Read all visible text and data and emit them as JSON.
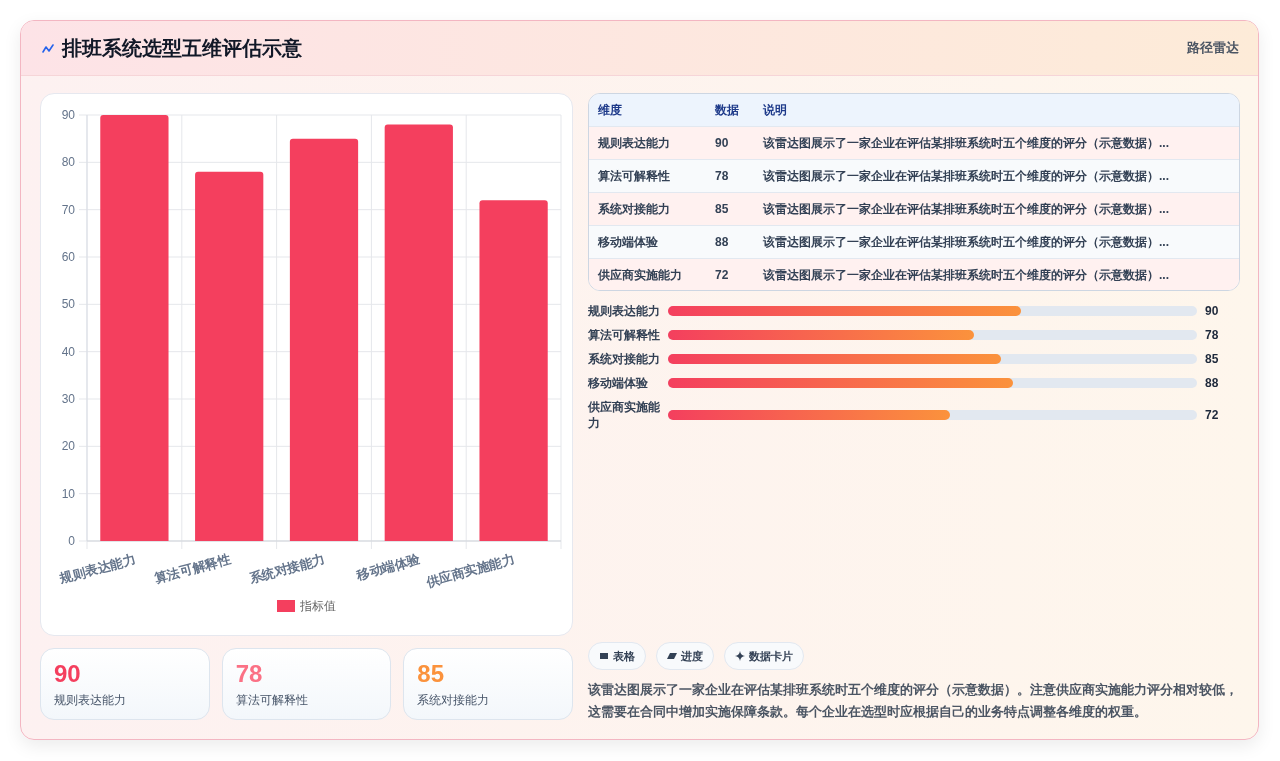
{
  "chart_data": [
    {
      "type": "other",
      "title": "排班系统选型五维评估示意",
      "subtitle": "路径雷达"
    },
    {
      "type": "bar",
      "categories": [
        "规则表达能力",
        "算法可解释性",
        "系统对接能力",
        "移动端体验",
        "供应商实施能力"
      ],
      "series": [
        {
          "name": "指标值",
          "color": "#f43f5e",
          "values": [
            90,
            78,
            85,
            88,
            72
          ]
        }
      ],
      "ylim": [
        0,
        90
      ],
      "yticks": [
        0,
        10,
        20,
        30,
        40,
        50,
        60,
        70,
        80,
        90
      ],
      "grid": true,
      "legend": "bottom"
    },
    {
      "type": "other",
      "categories": [
        "规则表达能力",
        "算法可解释性",
        "系统对接能力",
        "移动端体验",
        "供应商实施能力"
      ],
      "values": [
        90,
        78,
        85,
        88,
        72
      ],
      "data_labels": true,
      "annotations": [
        "维度",
        "数据",
        "说明",
        "该雷达图展示了一家企业在评估某排班系统时五个维度的评分（示意数据）...",
        "该雷达图展示了一家企业在评估某排班系统时五个维度的评分（示意数据）...",
        "该雷达图展示了一家企业在评估某排班系统时五个维度的评分（示意数据）...",
        "该雷达图展示了一家企业在评估某排班系统时五个维度的评分（示意数据）...",
        "该雷达图展示了一家企业在评估某排班系统时五个维度的评分（示意数据）..."
      ]
    },
    {
      "type": "bar",
      "orientation": "horizontal",
      "categories": [
        "规则表达能力",
        "算法可解释性",
        "系统对接能力",
        "移动端体验",
        "供应商实施能力"
      ],
      "values": [
        90,
        78,
        85,
        88,
        72
      ],
      "color": "#f43f5e",
      "data_labels": true
    },
    {
      "type": "other",
      "categories": [
        "规则表达能力",
        "算法可解释性",
        "系统对接能力"
      ],
      "values": [
        90,
        78,
        85
      ],
      "data_labels": true
    },
    {
      "type": "other",
      "annotations": [
        "表格",
        "进度",
        "数据卡片",
        "该雷达图展示了一家企业在评估某排班系统时五个维度的评分（示意数据）。注意供应商实施能力评分相对较低，这需要在合同中增加实施保障条款。每个企业在选型时应根据自己的业务特点调整各维度的权重。"
      ]
    }
  ]
}
